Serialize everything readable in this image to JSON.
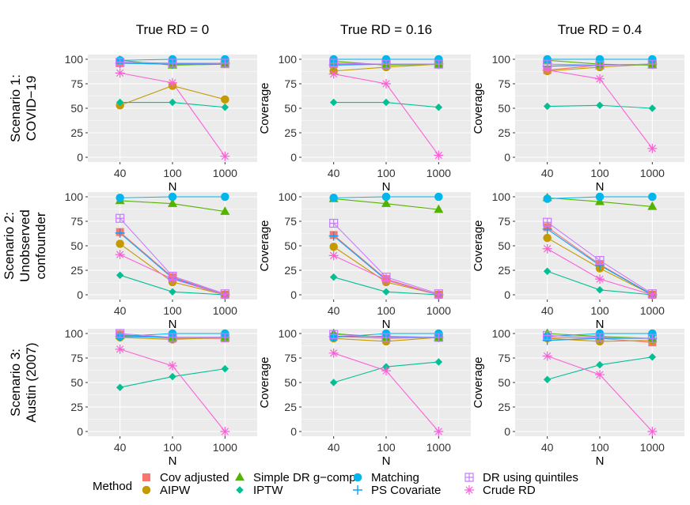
{
  "chart_data": {
    "type": "line",
    "x": [
      "40",
      "100",
      "1000"
    ],
    "xlabel": "N",
    "ylabel": "Coverage",
    "ylim": [
      0,
      100
    ],
    "yticks": [
      0,
      25,
      50,
      75,
      100
    ],
    "column_titles": [
      "True RD = 0",
      "True RD = 0.16",
      "True RD = 0.4"
    ],
    "row_titles": [
      [
        "Scenario 1:",
        "COVID−19"
      ],
      [
        "Scenario 2:",
        "Unobserved",
        "confounder"
      ],
      [
        "Scenario 3:",
        "Austin (2007)"
      ]
    ],
    "legend": {
      "title": "Method",
      "position": "bottom",
      "entries": [
        {
          "name": "Cov adjusted",
          "color": "#F8766D",
          "shape": "square"
        },
        {
          "name": "AIPW",
          "color": "#C49A00",
          "shape": "circle"
        },
        {
          "name": "Simple DR g−comp",
          "color": "#53B400",
          "shape": "triangle"
        },
        {
          "name": "IPTW",
          "color": "#00C094",
          "shape": "diamond"
        },
        {
          "name": "Matching",
          "color": "#00B6EB",
          "shape": "circle"
        },
        {
          "name": "PS Covariate",
          "color": "#06A4FF",
          "shape": "plus"
        },
        {
          "name": "DR using quintiles",
          "color": "#C77CFF",
          "shape": "boxplus"
        },
        {
          "name": "Crude RD",
          "color": "#FB61D7",
          "shape": "asterisk"
        }
      ]
    },
    "panels": [
      {
        "row": 0,
        "col": 0,
        "series": [
          {
            "name": "Cov adjusted",
            "values": [
              96,
              95,
              95
            ]
          },
          {
            "name": "AIPW",
            "values": [
              53,
              73,
              59
            ]
          },
          {
            "name": "Simple DR g−comp",
            "values": [
              99,
              94,
              95
            ]
          },
          {
            "name": "IPTW",
            "values": [
              56,
              56,
              51
            ]
          },
          {
            "name": "Matching",
            "values": [
              99,
              100,
              100
            ]
          },
          {
            "name": "PS Covariate",
            "values": [
              96,
              95,
              96
            ]
          },
          {
            "name": "DR using quintiles",
            "values": [
              97,
              96,
              96
            ]
          },
          {
            "name": "Crude RD",
            "values": [
              86,
              76,
              1
            ]
          }
        ]
      },
      {
        "row": 0,
        "col": 1,
        "series": [
          {
            "name": "Cov adjusted",
            "values": [
              95,
              95,
              95
            ]
          },
          {
            "name": "AIPW",
            "values": [
              88,
              92,
              95
            ]
          },
          {
            "name": "Simple DR g−comp",
            "values": [
              98,
              94,
              95
            ]
          },
          {
            "name": "IPTW",
            "values": [
              56,
              56,
              51
            ]
          },
          {
            "name": "Matching",
            "values": [
              100,
              100,
              100
            ]
          },
          {
            "name": "PS Covariate",
            "values": [
              94,
              95,
              95
            ]
          },
          {
            "name": "DR using quintiles",
            "values": [
              96,
              95,
              95
            ]
          },
          {
            "name": "Crude RD",
            "values": [
              85,
              75,
              2
            ]
          }
        ]
      },
      {
        "row": 0,
        "col": 2,
        "series": [
          {
            "name": "Cov adjusted",
            "values": [
              89,
              94,
              95
            ]
          },
          {
            "name": "AIPW",
            "values": [
              88,
              92,
              95
            ]
          },
          {
            "name": "Simple DR g−comp",
            "values": [
              99,
              95,
              94
            ]
          },
          {
            "name": "IPTW",
            "values": [
              52,
              53,
              50
            ]
          },
          {
            "name": "Matching",
            "values": [
              100,
              100,
              100
            ]
          },
          {
            "name": "PS Covariate",
            "values": [
              93,
              94,
              95
            ]
          },
          {
            "name": "DR using quintiles",
            "values": [
              95,
              94,
              95
            ]
          },
          {
            "name": "Crude RD",
            "values": [
              89,
              80,
              9
            ]
          }
        ]
      },
      {
        "row": 1,
        "col": 0,
        "series": [
          {
            "name": "Cov adjusted",
            "values": [
              64,
              18,
              0
            ]
          },
          {
            "name": "AIPW",
            "values": [
              52,
              13,
              0
            ]
          },
          {
            "name": "Simple DR g−comp",
            "values": [
              96,
              93,
              85
            ]
          },
          {
            "name": "IPTW",
            "values": [
              20,
              3,
              0
            ]
          },
          {
            "name": "Matching",
            "values": [
              99,
              100,
              100
            ]
          },
          {
            "name": "PS Covariate",
            "values": [
              63,
              17,
              0
            ]
          },
          {
            "name": "DR using quintiles",
            "values": [
              78,
              19,
              1
            ]
          },
          {
            "name": "Crude RD",
            "values": [
              41,
              16,
              0
            ]
          }
        ]
      },
      {
        "row": 1,
        "col": 1,
        "series": [
          {
            "name": "Cov adjusted",
            "values": [
              61,
              16,
              0
            ]
          },
          {
            "name": "AIPW",
            "values": [
              49,
              13,
              0
            ]
          },
          {
            "name": "Simple DR g−comp",
            "values": [
              98,
              93,
              87
            ]
          },
          {
            "name": "IPTW",
            "values": [
              18,
              3,
              0
            ]
          },
          {
            "name": "Matching",
            "values": [
              99,
              100,
              100
            ]
          },
          {
            "name": "PS Covariate",
            "values": [
              60,
              15,
              0
            ]
          },
          {
            "name": "DR using quintiles",
            "values": [
              73,
              18,
              1
            ]
          },
          {
            "name": "Crude RD",
            "values": [
              40,
              15,
              0
            ]
          }
        ]
      },
      {
        "row": 1,
        "col": 2,
        "series": [
          {
            "name": "Cov adjusted",
            "values": [
              69,
              31,
              0
            ]
          },
          {
            "name": "AIPW",
            "values": [
              58,
              27,
              0
            ]
          },
          {
            "name": "Simple DR g−comp",
            "values": [
              99,
              95,
              90
            ]
          },
          {
            "name": "IPTW",
            "values": [
              24,
              5,
              0
            ]
          },
          {
            "name": "Matching",
            "values": [
              98,
              100,
              100
            ]
          },
          {
            "name": "PS Covariate",
            "values": [
              67,
              30,
              0
            ]
          },
          {
            "name": "DR using quintiles",
            "values": [
              74,
              35,
              1
            ]
          },
          {
            "name": "Crude RD",
            "values": [
              47,
              16,
              0
            ]
          }
        ]
      },
      {
        "row": 2,
        "col": 0,
        "series": [
          {
            "name": "Cov adjusted",
            "values": [
              99,
              95,
              95
            ]
          },
          {
            "name": "AIPW",
            "values": [
              96,
              94,
              96
            ]
          },
          {
            "name": "Simple DR g−comp",
            "values": [
              98,
              96,
              96
            ]
          },
          {
            "name": "IPTW",
            "values": [
              45,
              56,
              64
            ]
          },
          {
            "name": "Matching",
            "values": [
              97,
              100,
              100
            ]
          },
          {
            "name": "PS Covariate",
            "values": [
              97,
              96,
              96
            ]
          },
          {
            "name": "DR using quintiles",
            "values": [
              100,
              96,
              96
            ]
          },
          {
            "name": "Crude RD",
            "values": [
              84,
              67,
              0
            ]
          }
        ]
      },
      {
        "row": 2,
        "col": 1,
        "series": [
          {
            "name": "Cov adjusted",
            "values": [
              97,
              95,
              96
            ]
          },
          {
            "name": "AIPW",
            "values": [
              95,
              92,
              96
            ]
          },
          {
            "name": "Simple DR g−comp",
            "values": [
              100,
              96,
              96
            ]
          },
          {
            "name": "IPTW",
            "values": [
              50,
              66,
              71
            ]
          },
          {
            "name": "Matching",
            "values": [
              96,
              100,
              100
            ]
          },
          {
            "name": "PS Covariate",
            "values": [
              97,
              97,
              96
            ]
          },
          {
            "name": "DR using quintiles",
            "values": [
              99,
              96,
              96
            ]
          },
          {
            "name": "Crude RD",
            "values": [
              80,
              62,
              0
            ]
          }
        ]
      },
      {
        "row": 2,
        "col": 2,
        "series": [
          {
            "name": "Cov adjusted",
            "values": [
              96,
              95,
              91
            ]
          },
          {
            "name": "AIPW",
            "values": [
              95,
              92,
              93
            ]
          },
          {
            "name": "Simple DR g−comp",
            "values": [
              100,
              97,
              95
            ]
          },
          {
            "name": "IPTW",
            "values": [
              53,
              68,
              76
            ]
          },
          {
            "name": "Matching",
            "values": [
              97,
              100,
              100
            ]
          },
          {
            "name": "PS Covariate",
            "values": [
              93,
              95,
              95
            ]
          },
          {
            "name": "DR using quintiles",
            "values": [
              98,
              96,
              95
            ]
          },
          {
            "name": "Crude RD",
            "values": [
              77,
              58,
              0
            ]
          }
        ]
      }
    ]
  }
}
